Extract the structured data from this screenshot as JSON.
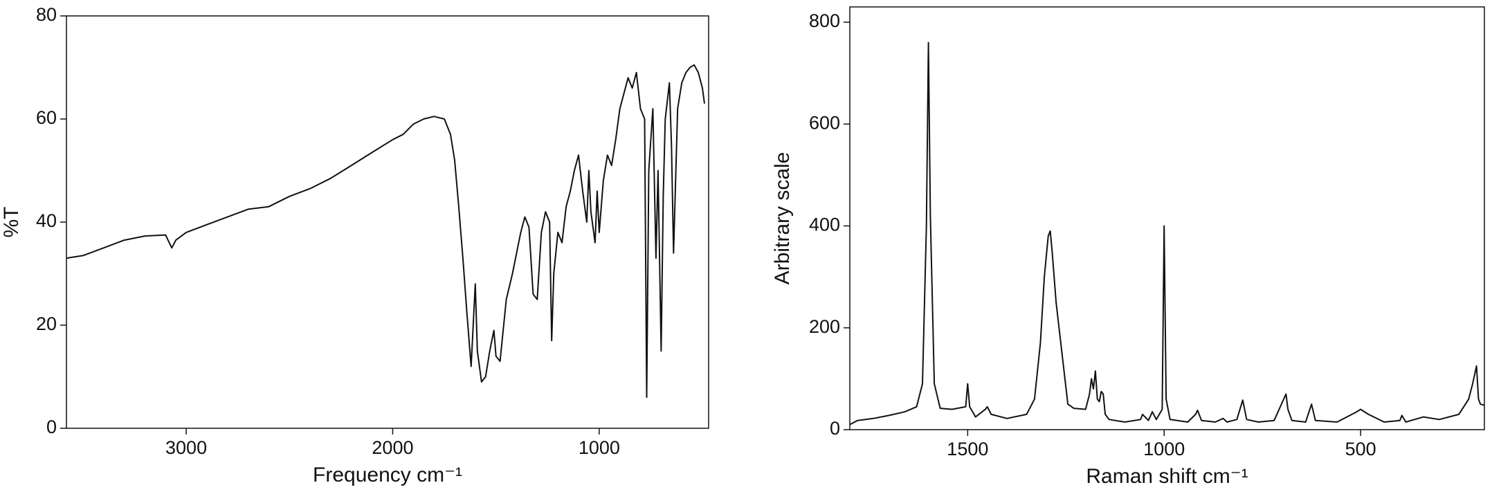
{
  "chart_data": [
    {
      "type": "line",
      "color": "#111111",
      "xlabel": "Frequency cm⁻¹",
      "ylabel": "%T",
      "xlim": [
        3580,
        470
      ],
      "ylim": [
        0,
        80
      ],
      "xticks": [
        3000,
        2000,
        1000
      ],
      "yticks": [
        0,
        20,
        40,
        60,
        80
      ],
      "x": [
        3580,
        3500,
        3400,
        3300,
        3200,
        3100,
        3070,
        3050,
        3000,
        2900,
        2800,
        2700,
        2600,
        2500,
        2400,
        2300,
        2200,
        2100,
        2000,
        1950,
        1900,
        1850,
        1800,
        1750,
        1720,
        1700,
        1680,
        1660,
        1640,
        1620,
        1610,
        1600,
        1590,
        1570,
        1550,
        1530,
        1510,
        1500,
        1480,
        1450,
        1420,
        1380,
        1360,
        1340,
        1320,
        1300,
        1280,
        1260,
        1240,
        1230,
        1220,
        1200,
        1180,
        1160,
        1140,
        1120,
        1100,
        1080,
        1060,
        1050,
        1040,
        1020,
        1010,
        1000,
        980,
        960,
        940,
        920,
        900,
        880,
        860,
        840,
        820,
        800,
        780,
        770,
        760,
        740,
        725,
        715,
        700,
        690,
        680,
        660,
        650,
        640,
        620,
        600,
        580,
        560,
        540,
        520,
        500,
        490
      ],
      "values": [
        33,
        33.5,
        35,
        36.5,
        37.3,
        37.5,
        35,
        36.5,
        38,
        39.5,
        41,
        42.5,
        43,
        45,
        46.5,
        48.5,
        51,
        53.5,
        56,
        57,
        59,
        60,
        60.5,
        60,
        57,
        52,
        43,
        33,
        22,
        12,
        20,
        28,
        15,
        9,
        10,
        15,
        19,
        14,
        13,
        25,
        30,
        38,
        41,
        39,
        26,
        25,
        38,
        42,
        40,
        17,
        30,
        38,
        36,
        43,
        46,
        50,
        53,
        46,
        40,
        50,
        42,
        36,
        46,
        38,
        48,
        53,
        51,
        56,
        62,
        65,
        68,
        66,
        69,
        62,
        60,
        6,
        50,
        62,
        33,
        50,
        15,
        45,
        60,
        67,
        55,
        34,
        62,
        67,
        69,
        70,
        70.5,
        69,
        66,
        63
      ]
    },
    {
      "type": "line",
      "color": "#111111",
      "xlabel": "Raman shift cm⁻¹",
      "ylabel": "Arbitrary scale",
      "xlim": [
        1800,
        185
      ],
      "ylim": [
        0,
        830
      ],
      "xticks": [
        1500,
        1000,
        500
      ],
      "yticks": [
        0,
        200,
        400,
        600,
        800
      ],
      "x": [
        1800,
        1780,
        1740,
        1700,
        1660,
        1630,
        1615,
        1605,
        1600,
        1595,
        1585,
        1570,
        1540,
        1505,
        1500,
        1495,
        1480,
        1455,
        1450,
        1440,
        1400,
        1350,
        1330,
        1315,
        1305,
        1295,
        1290,
        1285,
        1275,
        1260,
        1245,
        1230,
        1200,
        1190,
        1185,
        1180,
        1175,
        1170,
        1165,
        1160,
        1155,
        1150,
        1140,
        1100,
        1060,
        1055,
        1040,
        1030,
        1020,
        1005,
        1000,
        995,
        985,
        940,
        920,
        915,
        905,
        870,
        850,
        840,
        815,
        800,
        790,
        760,
        720,
        690,
        685,
        675,
        640,
        625,
        615,
        560,
        510,
        500,
        480,
        440,
        400,
        395,
        385,
        340,
        300,
        250,
        225,
        215,
        205,
        200,
        195,
        185
      ],
      "values": [
        10,
        18,
        22,
        28,
        35,
        45,
        90,
        400,
        760,
        420,
        90,
        42,
        40,
        45,
        90,
        45,
        25,
        40,
        45,
        30,
        22,
        30,
        60,
        170,
        300,
        380,
        390,
        350,
        250,
        150,
        50,
        42,
        40,
        70,
        100,
        80,
        115,
        60,
        55,
        75,
        70,
        30,
        20,
        15,
        20,
        30,
        18,
        35,
        20,
        40,
        400,
        60,
        20,
        15,
        30,
        38,
        18,
        15,
        22,
        15,
        20,
        58,
        20,
        15,
        18,
        70,
        40,
        18,
        15,
        50,
        18,
        15,
        35,
        40,
        30,
        15,
        18,
        28,
        15,
        25,
        20,
        30,
        60,
        90,
        125,
        60,
        50,
        48
      ]
    }
  ]
}
